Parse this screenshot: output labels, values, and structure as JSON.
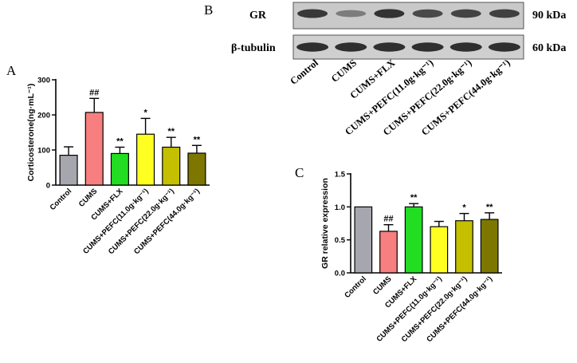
{
  "panels": {
    "a": "A",
    "b": "B",
    "c": "C"
  },
  "blot": {
    "row_labels": [
      "GR",
      "β-tubulin"
    ],
    "mw_labels": [
      "90 kDa",
      "60 kDa"
    ],
    "lane_labels": [
      "Control",
      "CUMS",
      "CUMS+FLX",
      "CUMS+PEFC(11.0g·kg⁻¹)",
      "CUMS+PEFC(22.0g·kg⁻¹)",
      "CUMS+PEFC(44.0g·kg⁻¹)"
    ],
    "gr_band_intensity": [
      0.85,
      0.45,
      0.88,
      0.75,
      0.78,
      0.8
    ],
    "tubulin_band_intensity": [
      0.9,
      0.9,
      0.9,
      0.9,
      0.9,
      0.9
    ]
  },
  "chart_data": [
    {
      "type": "bar",
      "panel": "A",
      "ylabel": "Corticosterone(ng·mL⁻¹)",
      "ylim": [
        0,
        300
      ],
      "yticks": [
        "0",
        "100",
        "200",
        "300"
      ],
      "categories": [
        "Control",
        "CUMS",
        "CUMS+FLX",
        "CUMS+PEFC(11.0g·kg⁻¹)",
        "CUMS+PEFC(22.0g·kg⁻¹)",
        "CUMS+PEFC(44.0g·kg⁻¹)"
      ],
      "values": [
        85,
        207,
        90,
        145,
        108,
        91
      ],
      "errors": [
        24,
        40,
        18,
        45,
        28,
        22
      ],
      "annotations": [
        "",
        "##",
        "**",
        "*",
        "**",
        "**"
      ],
      "colors": [
        "#a6a6ae",
        "#f77f7f",
        "#22dd22",
        "#ffff22",
        "#c4c000",
        "#7d7700"
      ]
    },
    {
      "type": "bar",
      "panel": "C",
      "ylabel": "GR relative expression",
      "ylim": [
        0,
        1.5
      ],
      "yticks": [
        "0.0",
        "0.5",
        "1.0",
        "1.5"
      ],
      "categories": [
        "Control",
        "CUMS",
        "CUMS+FLX",
        "CUMS+PEFC(11.0g·kg⁻¹)",
        "CUMS+PEFC(22.0g·kg⁻¹)",
        "CUMS+PEFC(44.0g·kg⁻¹)"
      ],
      "values": [
        1.0,
        0.63,
        1.0,
        0.7,
        0.79,
        0.81
      ],
      "errors": [
        0,
        0.1,
        0.05,
        0.08,
        0.11,
        0.1
      ],
      "annotations": [
        "",
        "##",
        "**",
        "",
        "*",
        "**"
      ],
      "colors": [
        "#a6a6ae",
        "#f77f7f",
        "#22dd22",
        "#ffff22",
        "#c4c000",
        "#7d7700"
      ]
    }
  ]
}
